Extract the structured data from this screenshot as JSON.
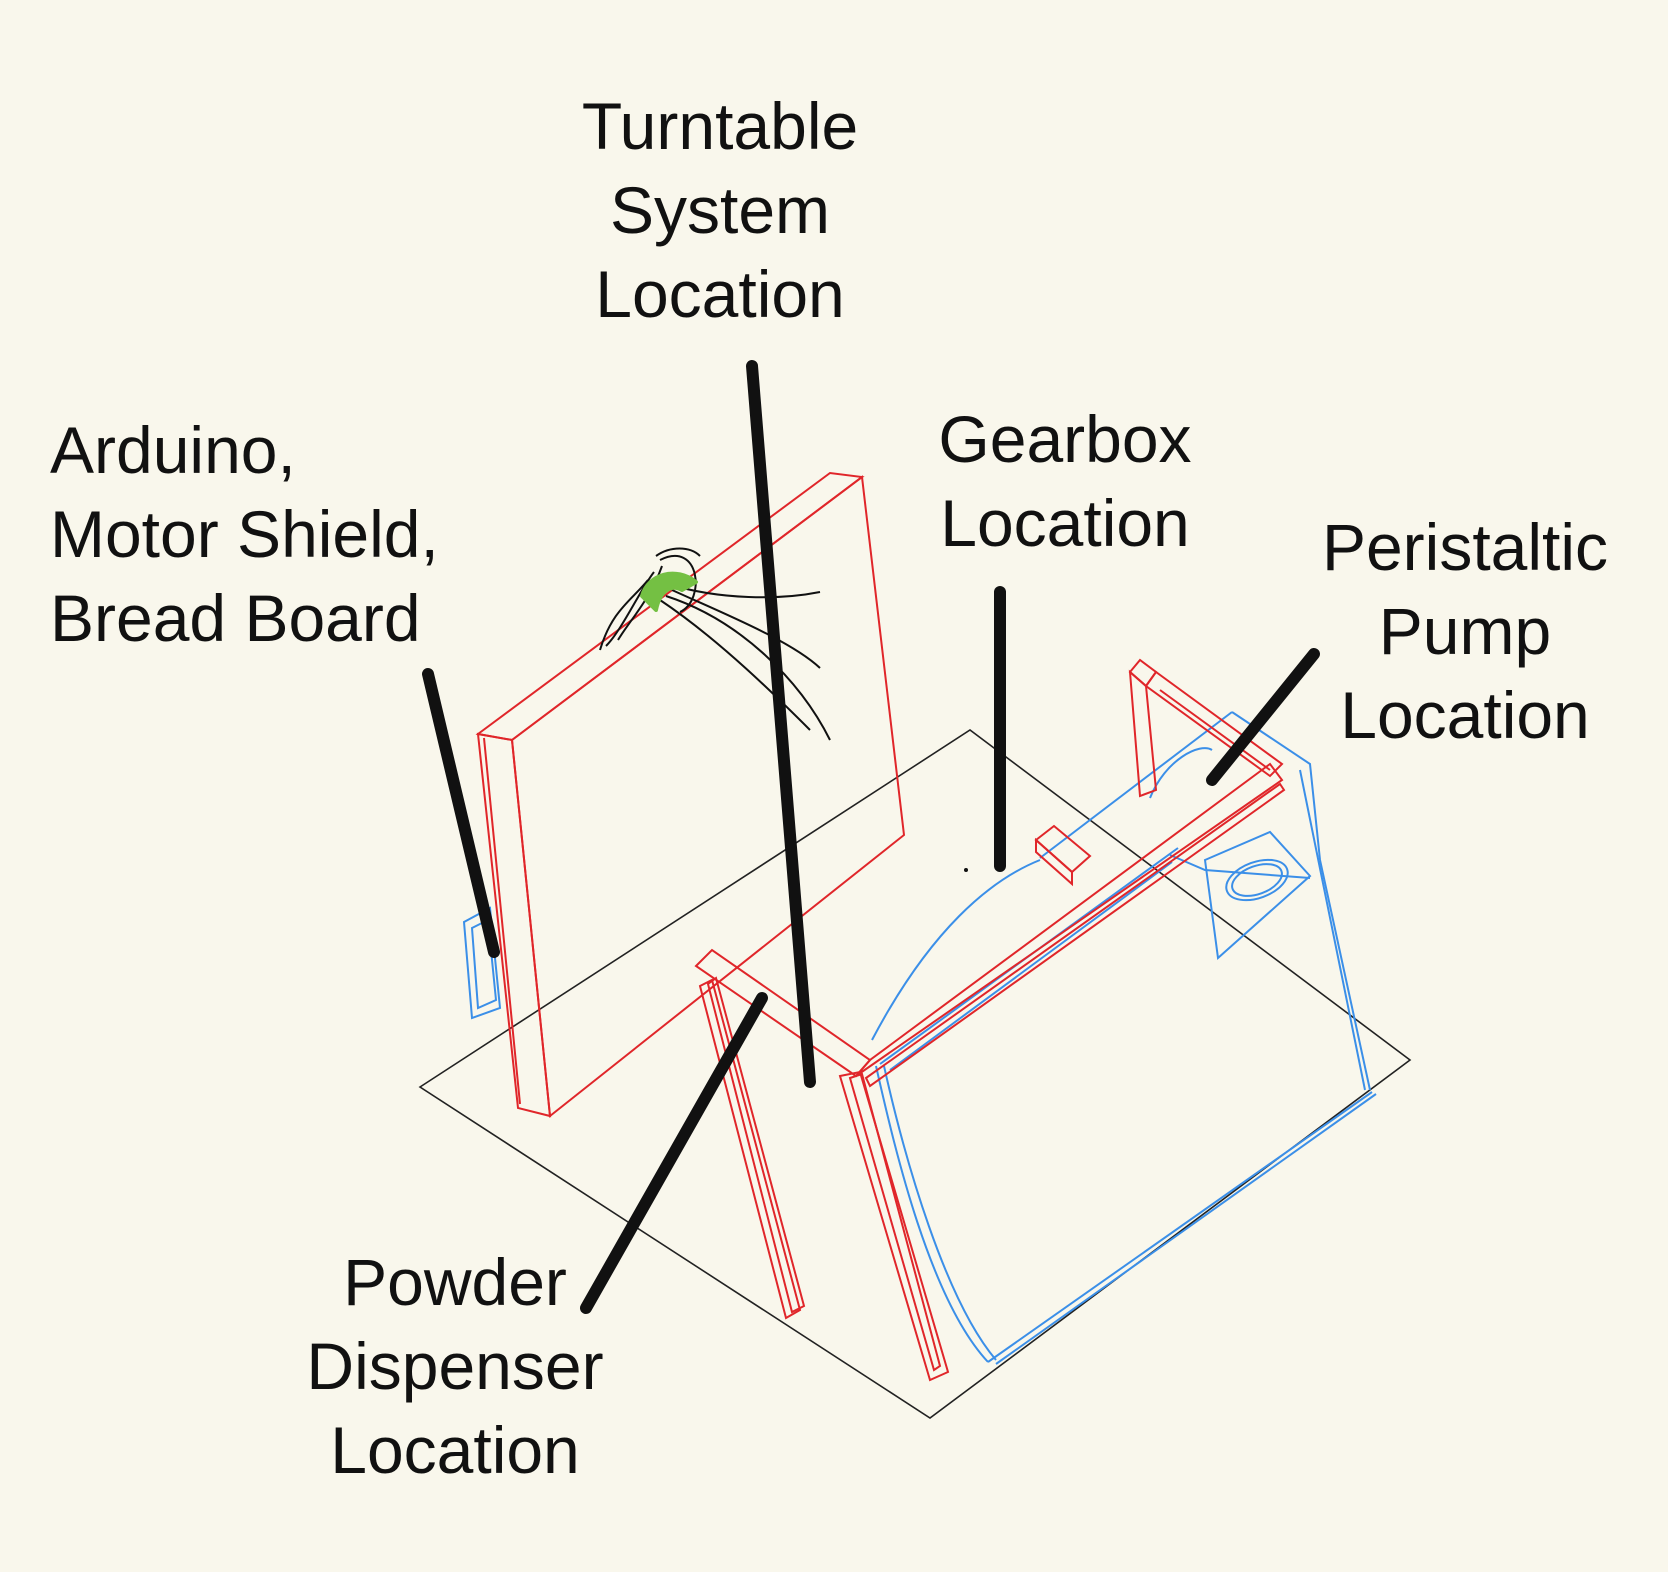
{
  "labels": {
    "turntable": [
      "Turntable",
      "System",
      "Location"
    ],
    "arduino": [
      "Arduino,",
      "Motor Shield,",
      "Bread Board"
    ],
    "gearbox": [
      "Gearbox",
      "Location"
    ],
    "pump": [
      "Peristaltic",
      "Pump",
      "Location"
    ],
    "powder": [
      "Powder",
      "Dispenser",
      "Location"
    ]
  },
  "colors": {
    "background": "#f9f7ec",
    "frame": "#e0262a",
    "components": "#3b8fe8",
    "base": "#222222",
    "leader": "#111111",
    "wires": "#111111",
    "connector": "#74c043"
  }
}
